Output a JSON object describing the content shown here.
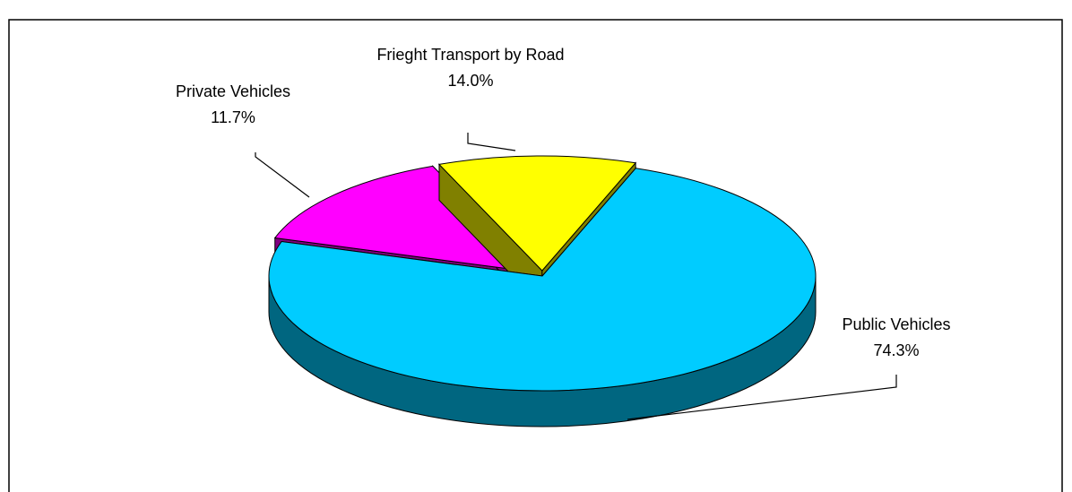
{
  "chart_data": {
    "type": "pie3d",
    "categories": [
      "Public Vehicles",
      "Frieght Transport by Road",
      "Private Vehicles"
    ],
    "values": [
      74.3,
      14.0,
      11.7
    ],
    "value_labels": [
      "74.3%",
      "14.0%",
      "11.7%"
    ],
    "colors": [
      "#00ccff",
      "#ff00ff",
      "#ffff00"
    ]
  }
}
